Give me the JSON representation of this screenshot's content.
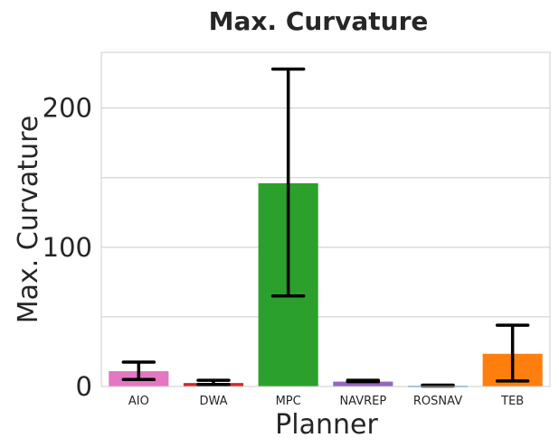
{
  "chart_data": {
    "type": "bar",
    "title": "Max. Curvature",
    "xlabel": "Planner",
    "ylabel": "Max. Curvature",
    "categories": [
      "AIO",
      "DWA",
      "MPC",
      "NAVREP",
      "ROSNAV",
      "TEB"
    ],
    "values": [
      11,
      2.5,
      146,
      3.5,
      0.5,
      23.5
    ],
    "error_low": [
      5,
      1.5,
      65,
      3.5,
      0.3,
      4
    ],
    "error_high": [
      17.5,
      4.5,
      228,
      4.5,
      1,
      44
    ],
    "colors": [
      "#e377c2",
      "#d62728",
      "#2ca02c",
      "#9467bd",
      "#1f77b4",
      "#ff7f0e"
    ],
    "ylim": [
      0,
      240
    ],
    "yticks": [
      0,
      100,
      200
    ],
    "ytick_labels": [
      "0",
      "100",
      "200"
    ],
    "grid": true
  }
}
